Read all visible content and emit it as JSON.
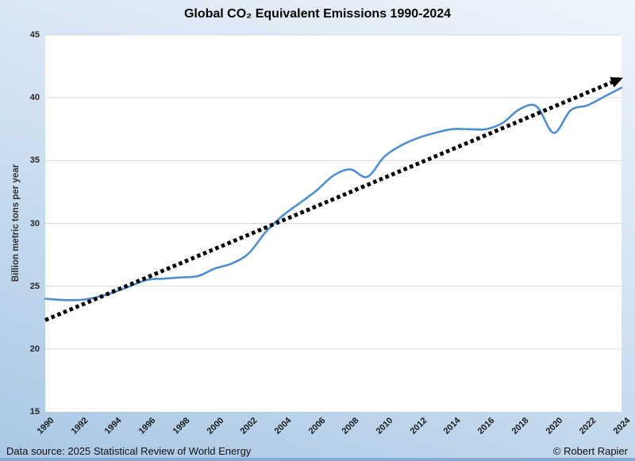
{
  "title": "Global CO₂ Equivalent Emissions 1990-2024",
  "y_axis": {
    "label": "Billion metric tons per year",
    "min": 15,
    "max": 45,
    "ticks": [
      15,
      20,
      25,
      30,
      35,
      40,
      45
    ]
  },
  "x_axis": {
    "tick_years": [
      "1990",
      "1992",
      "1994",
      "1996",
      "1998",
      "2000",
      "2002",
      "2004",
      "2006",
      "2008",
      "2010",
      "2012",
      "2014",
      "2016",
      "2018",
      "2020",
      "2022",
      "2024"
    ]
  },
  "footer": {
    "source": "Data source: 2025 Statistical Review of World Energy",
    "credit": "© Robert Rapier"
  },
  "colors": {
    "background_top": "#eef4fb",
    "background_bottom": "#a9c7e5",
    "bottom_bar": "#84abd6",
    "plot_background": "#ffffff",
    "gridline": "#d9d9d9",
    "emissions_line": "#4f8fd0",
    "trend_line": "#000000",
    "text": "#1a1a1a"
  },
  "chart_data": {
    "type": "line",
    "title": "Global CO₂ Equivalent Emissions 1990-2024",
    "xlabel": "",
    "ylabel": "Billion metric tons per year",
    "ylim": [
      15,
      45
    ],
    "xlim": [
      1990,
      2024
    ],
    "grid": true,
    "legend": "none",
    "x": [
      1990,
      1991,
      1992,
      1993,
      1994,
      1995,
      1996,
      1997,
      1998,
      1999,
      2000,
      2001,
      2002,
      2003,
      2004,
      2005,
      2006,
      2007,
      2008,
      2009,
      2010,
      2011,
      2012,
      2013,
      2014,
      2015,
      2016,
      2017,
      2018,
      2019,
      2020,
      2021,
      2022,
      2023,
      2024
    ],
    "series": [
      {
        "name": "Global CO2 equivalent emissions",
        "style": "smooth-line",
        "color": "#4f8fd0",
        "values": [
          24.0,
          23.9,
          23.9,
          24.1,
          24.5,
          25.0,
          25.5,
          25.6,
          25.7,
          25.8,
          26.4,
          26.8,
          27.6,
          29.3,
          30.6,
          31.6,
          32.6,
          33.8,
          34.3,
          33.7,
          35.3,
          36.2,
          36.8,
          37.2,
          37.5,
          37.5,
          37.5,
          38.0,
          39.1,
          39.3,
          37.2,
          39.0,
          39.4,
          40.1,
          40.8
        ]
      },
      {
        "name": "Linear trend",
        "style": "dotted-arrow",
        "color": "#000000",
        "points": [
          [
            1990,
            22.3
          ],
          [
            2024,
            41.55
          ]
        ]
      }
    ]
  }
}
